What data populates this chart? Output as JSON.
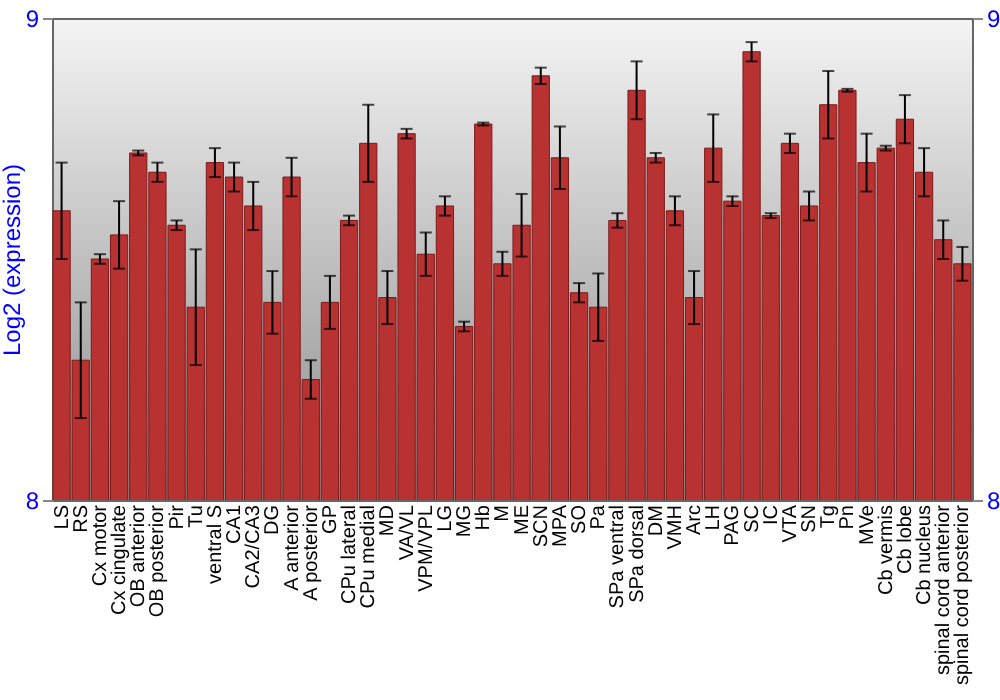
{
  "chart_data": {
    "type": "bar",
    "ylabel": "Log2 (expression)",
    "categories": [
      "LS",
      "RS",
      "Cx motor",
      "Cx cingulate",
      "OB anterior",
      "OB posterior",
      "Pir",
      "Tu",
      "ventral S",
      "CA1",
      "CA2/CA3",
      "DG",
      "A anterior",
      "A posterior",
      "GP",
      "CPu lateral",
      "CPu medial",
      "MD",
      "VA/VL",
      "VPM/VPL",
      "LG",
      "MG",
      "Hb",
      "M",
      "ME",
      "SCN",
      "MPA",
      "SO",
      "Pa",
      "SPa ventral",
      "SPa dorsal",
      "DM",
      "VMH",
      "Arc",
      "LH",
      "PAG",
      "SC",
      "IC",
      "VTA",
      "SN",
      "Tg",
      "Pn",
      "MVe",
      "Cb vermis",
      "Cb lobe",
      "Cb nucleus",
      "spinal cord anterior",
      "spinal cord posterior"
    ],
    "series": [
      {
        "color": "#b83232",
        "values": [
          8.6,
          8.29,
          8.5,
          8.55,
          8.72,
          8.68,
          8.57,
          8.4,
          8.7,
          8.67,
          8.61,
          8.41,
          8.67,
          8.25,
          8.41,
          8.58,
          8.74,
          8.42,
          8.76,
          8.51,
          8.61,
          8.36,
          8.78,
          8.49,
          8.57,
          8.88,
          8.71,
          8.43,
          8.4,
          8.58,
          8.85,
          8.71,
          8.6,
          8.42,
          8.73,
          8.62,
          8.93,
          8.59,
          8.74,
          8.61,
          8.82,
          8.85,
          8.7,
          8.73,
          8.79,
          8.68,
          8.54,
          8.49
        ],
        "errors": [
          0.1,
          0.12,
          0.01,
          0.07,
          0.005,
          0.02,
          0.01,
          0.12,
          0.03,
          0.03,
          0.05,
          0.065,
          0.04,
          0.04,
          0.055,
          0.01,
          0.08,
          0.055,
          0.01,
          0.045,
          0.02,
          0.01,
          0.003,
          0.025,
          0.065,
          0.017,
          0.065,
          0.02,
          0.07,
          0.015,
          0.06,
          0.01,
          0.03,
          0.055,
          0.07,
          0.01,
          0.02,
          0.005,
          0.02,
          0.03,
          0.07,
          0.003,
          0.06,
          0.005,
          0.05,
          0.05,
          0.04,
          0.035
        ]
      }
    ],
    "ylim": [
      8,
      9
    ],
    "yticks": [
      8,
      9
    ],
    "y2lim": [
      8,
      9
    ],
    "y2ticks": [
      8,
      9
    ],
    "grid": false
  }
}
